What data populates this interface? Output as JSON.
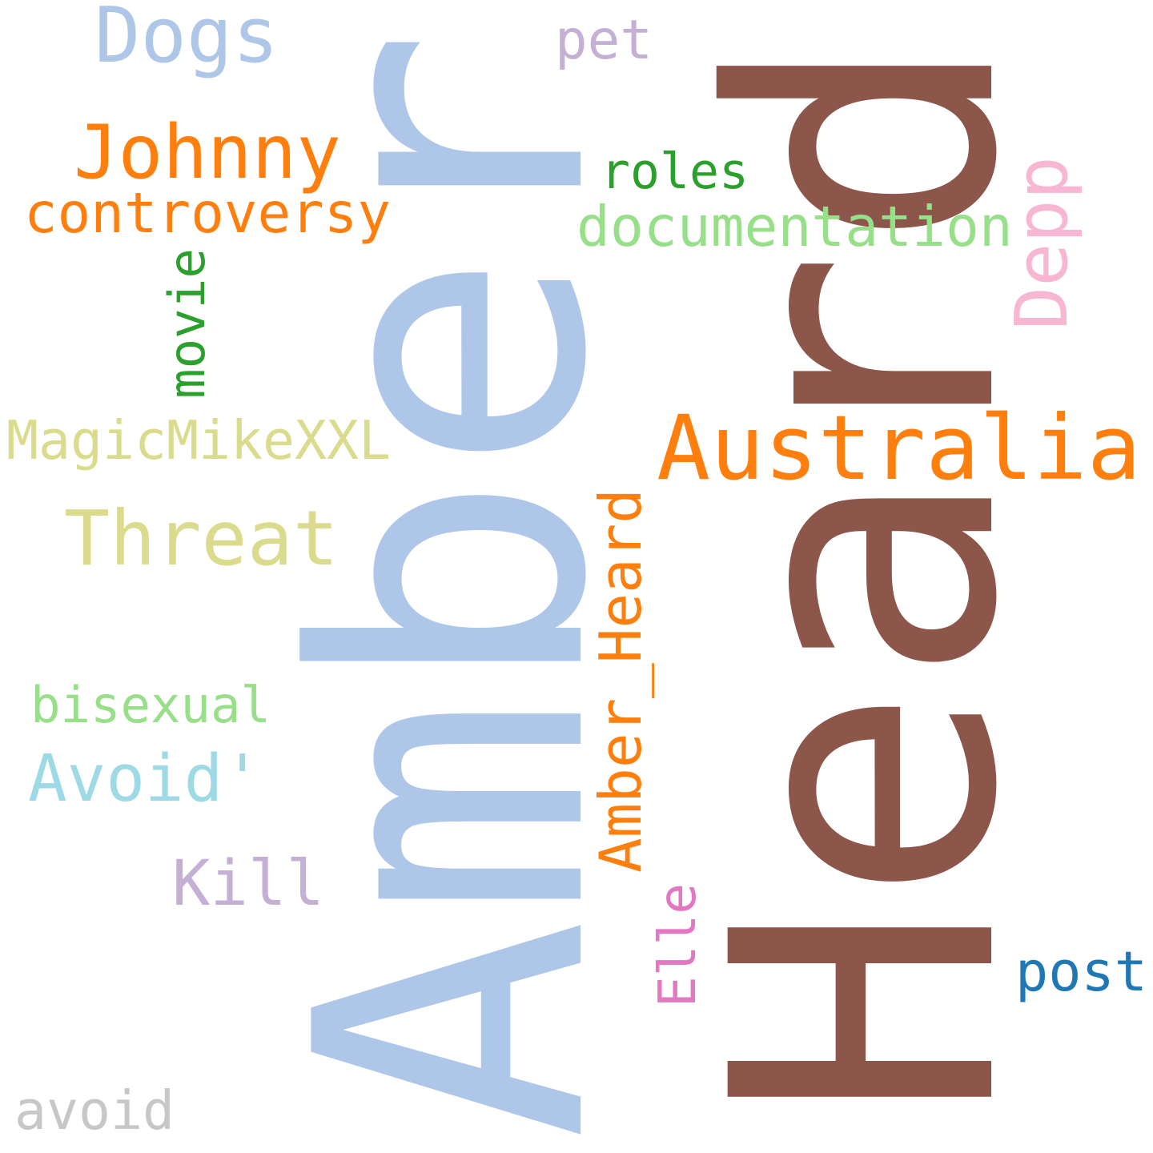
{
  "words": [
    {
      "key": "heard",
      "text": "Heard",
      "color": "#8c564b",
      "orientation": "vertical"
    },
    {
      "key": "amber",
      "text": "Amber",
      "color": "#aec7e8",
      "orientation": "vertical"
    },
    {
      "key": "australia",
      "text": "Australia",
      "color": "#ff7f0e",
      "orientation": "horizontal"
    },
    {
      "key": "johnny",
      "text": "Johnny",
      "color": "#ff7f0e",
      "orientation": "horizontal"
    },
    {
      "key": "threat",
      "text": "Threat",
      "color": "#dbdb8d",
      "orientation": "horizontal"
    },
    {
      "key": "dogs",
      "text": "Dogs",
      "color": "#aec7e8",
      "orientation": "horizontal"
    },
    {
      "key": "amber-heard",
      "text": "Amber_Heard",
      "color": "#ff7f0e",
      "orientation": "vertical"
    },
    {
      "key": "avoid-quote",
      "text": "Avoid'",
      "color": "#9edae5",
      "orientation": "horizontal"
    },
    {
      "key": "documentation",
      "text": "documentation",
      "color": "#98df8a",
      "orientation": "horizontal"
    },
    {
      "key": "controversy",
      "text": "controversy",
      "color": "#ff7f0e",
      "orientation": "horizontal"
    },
    {
      "key": "depp",
      "text": "Depp",
      "color": "#f7b6d2",
      "orientation": "vertical"
    },
    {
      "key": "kill",
      "text": "Kill",
      "color": "#c5b0d5",
      "orientation": "horizontal"
    },
    {
      "key": "magicmikexxl",
      "text": "MagicMikeXXL",
      "color": "#dbdb8d",
      "orientation": "horizontal"
    },
    {
      "key": "bisexual",
      "text": "bisexual",
      "color": "#98df8a",
      "orientation": "horizontal"
    },
    {
      "key": "avoid",
      "text": "avoid",
      "color": "#c7c7c7",
      "orientation": "horizontal"
    },
    {
      "key": "post",
      "text": "post",
      "color": "#1f77b4",
      "orientation": "horizontal"
    },
    {
      "key": "roles",
      "text": "roles",
      "color": "#2ca02c",
      "orientation": "horizontal"
    },
    {
      "key": "pet",
      "text": "pet",
      "color": "#c5b0d5",
      "orientation": "horizontal"
    },
    {
      "key": "movie",
      "text": "movie",
      "color": "#2ca02c",
      "orientation": "vertical"
    },
    {
      "key": "elle",
      "text": "Elle",
      "color": "#e377c2",
      "orientation": "vertical"
    }
  ]
}
